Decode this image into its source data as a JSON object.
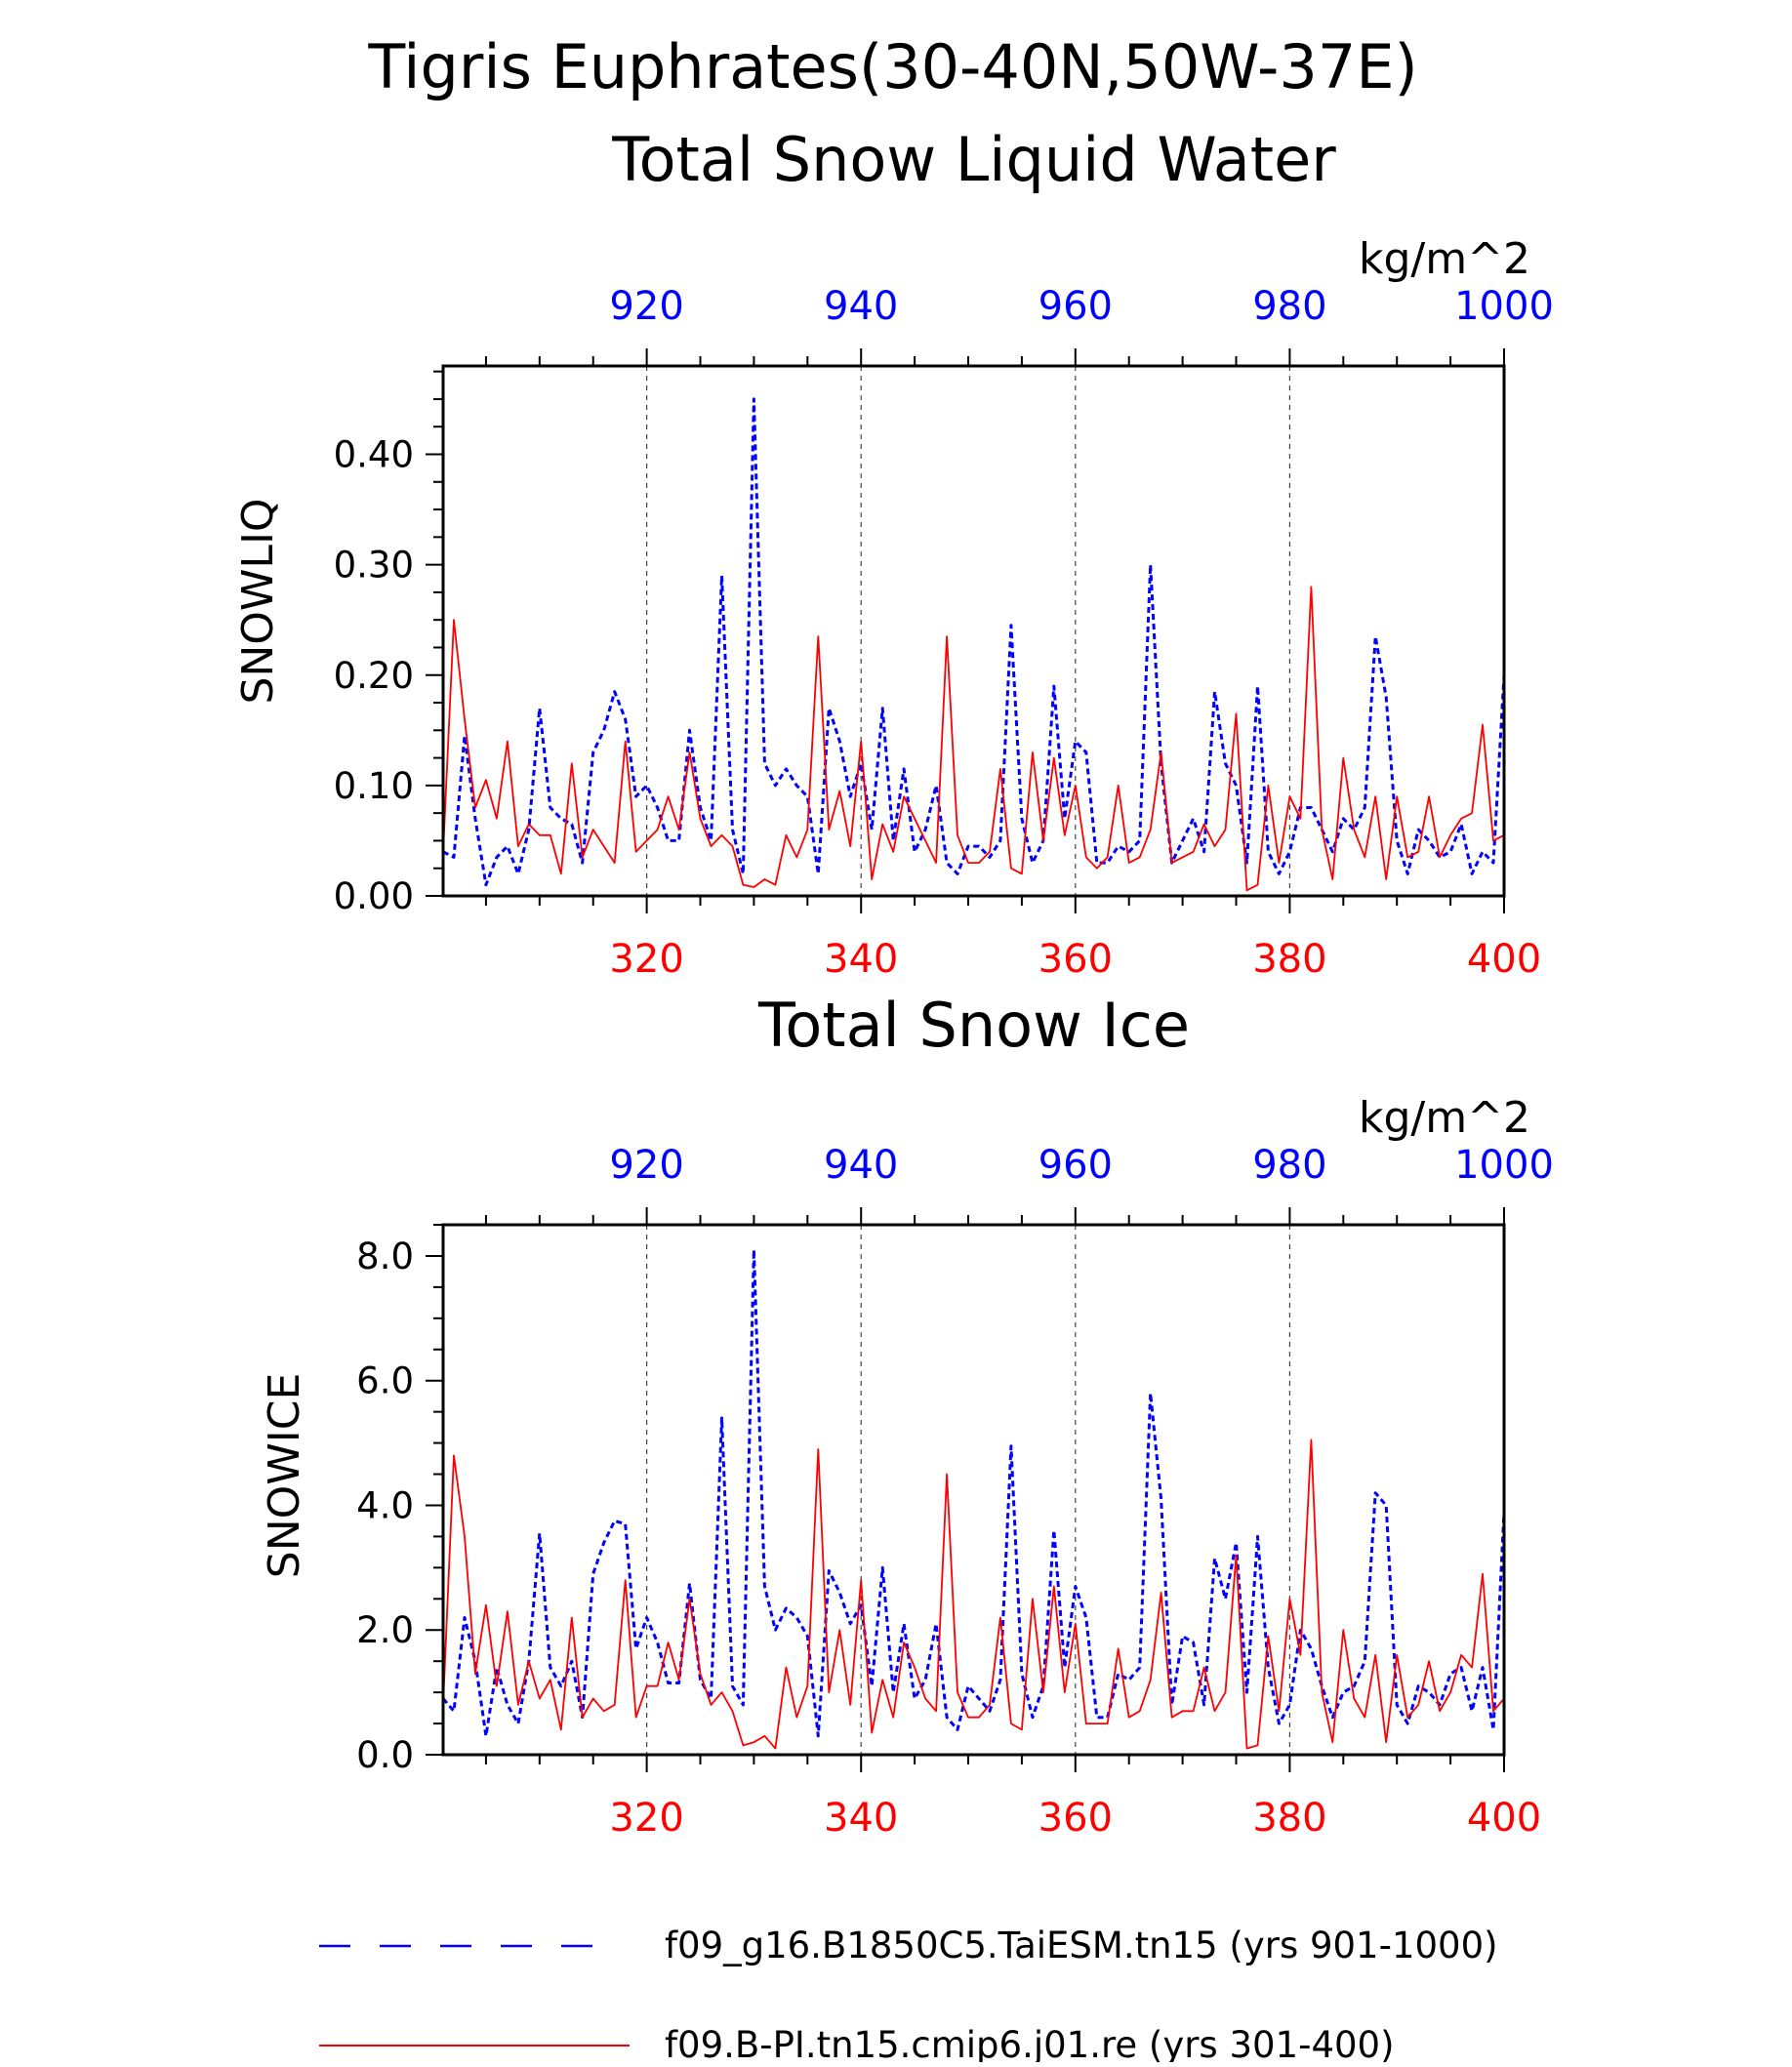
{
  "figure": {
    "title": "Tigris Euphrates(30-40N,50W-37E)"
  },
  "chart_data": [
    {
      "type": "line",
      "title": "Total Snow Liquid Water",
      "units": "kg/m^2",
      "ylabel": "SNOWLIQ",
      "ylim": [
        0,
        0.48
      ],
      "yticks": [
        "0.00",
        "0.10",
        "0.20",
        "0.30",
        "0.40"
      ],
      "xlim_bottom": [
        301,
        400
      ],
      "xticks_bottom": [
        "320",
        "340",
        "360",
        "380",
        "400"
      ],
      "xlim_top": [
        901,
        1000
      ],
      "xticks_top": [
        "920",
        "940",
        "960",
        "980",
        "1000"
      ],
      "grid": "vertical dashed at labelled x ticks",
      "series": [
        {
          "name": "f09_g16.B1850C5.TaiESM.tn15 (yrs 901-1000)",
          "axis": "top",
          "color": "#0000ff",
          "style": "dashed",
          "x_start": 901,
          "values": [
            0.04,
            0.035,
            0.145,
            0.07,
            0.01,
            0.035,
            0.045,
            0.02,
            0.06,
            0.17,
            0.08,
            0.07,
            0.065,
            0.03,
            0.13,
            0.15,
            0.185,
            0.16,
            0.09,
            0.1,
            0.08,
            0.05,
            0.05,
            0.15,
            0.08,
            0.05,
            0.29,
            0.06,
            0.02,
            0.45,
            0.12,
            0.1,
            0.115,
            0.1,
            0.09,
            0.02,
            0.17,
            0.14,
            0.09,
            0.12,
            0.06,
            0.17,
            0.05,
            0.115,
            0.04,
            0.06,
            0.1,
            0.03,
            0.02,
            0.045,
            0.045,
            0.035,
            0.05,
            0.245,
            0.07,
            0.03,
            0.05,
            0.19,
            0.07,
            0.14,
            0.13,
            0.03,
            0.03,
            0.045,
            0.04,
            0.05,
            0.3,
            0.12,
            0.03,
            0.05,
            0.07,
            0.04,
            0.185,
            0.12,
            0.1,
            0.03,
            0.19,
            0.04,
            0.02,
            0.04,
            0.08,
            0.08,
            0.06,
            0.04,
            0.07,
            0.06,
            0.08,
            0.235,
            0.18,
            0.05,
            0.02,
            0.06,
            0.05,
            0.035,
            0.04,
            0.065,
            0.02,
            0.04,
            0.03,
            0.2
          ]
        },
        {
          "name": "f09.B-PI.tn15.cmip6.j01.re (yrs 301-400)",
          "axis": "bottom",
          "color": "#ff0000",
          "style": "solid",
          "x_start": 301,
          "values": [
            0.04,
            0.25,
            0.16,
            0.08,
            0.105,
            0.07,
            0.14,
            0.045,
            0.065,
            0.055,
            0.055,
            0.02,
            0.12,
            0.035,
            0.06,
            0.045,
            0.03,
            0.14,
            0.04,
            0.05,
            0.06,
            0.09,
            0.06,
            0.13,
            0.07,
            0.045,
            0.055,
            0.045,
            0.01,
            0.008,
            0.015,
            0.01,
            0.055,
            0.035,
            0.06,
            0.235,
            0.06,
            0.095,
            0.045,
            0.14,
            0.015,
            0.065,
            0.04,
            0.09,
            0.07,
            0.05,
            0.03,
            0.235,
            0.055,
            0.03,
            0.03,
            0.04,
            0.115,
            0.025,
            0.02,
            0.13,
            0.05,
            0.125,
            0.055,
            0.1,
            0.035,
            0.025,
            0.035,
            0.1,
            0.03,
            0.035,
            0.06,
            0.13,
            0.03,
            0.035,
            0.04,
            0.065,
            0.045,
            0.06,
            0.165,
            0.005,
            0.01,
            0.1,
            0.03,
            0.09,
            0.07,
            0.28,
            0.06,
            0.015,
            0.125,
            0.06,
            0.035,
            0.09,
            0.015,
            0.09,
            0.035,
            0.04,
            0.09,
            0.035,
            0.055,
            0.07,
            0.075,
            0.155,
            0.05,
            0.055
          ]
        }
      ]
    },
    {
      "type": "line",
      "title": "Total Snow Ice",
      "units": "kg/m^2",
      "ylabel": "SNOWICE",
      "ylim": [
        0,
        8.5
      ],
      "yticks": [
        "0.0",
        "2.0",
        "4.0",
        "6.0",
        "8.0"
      ],
      "xlim_bottom": [
        301,
        400
      ],
      "xticks_bottom": [
        "320",
        "340",
        "360",
        "380",
        "400"
      ],
      "xlim_top": [
        901,
        1000
      ],
      "xticks_top": [
        "920",
        "940",
        "960",
        "980",
        "1000"
      ],
      "grid": "vertical dashed at labelled x ticks",
      "series": [
        {
          "name": "f09_g16.B1850C5.TaiESM.tn15 (yrs 901-1000)",
          "axis": "top",
          "color": "#0000ff",
          "style": "dashed",
          "x_start": 901,
          "values": [
            0.9,
            0.7,
            2.2,
            1.5,
            0.3,
            1.4,
            0.8,
            0.5,
            1.5,
            3.55,
            1.4,
            1.1,
            1.5,
            0.6,
            2.9,
            3.4,
            3.75,
            3.7,
            1.7,
            2.2,
            1.8,
            1.15,
            1.15,
            2.75,
            1.2,
            0.9,
            5.4,
            1.1,
            0.8,
            8.1,
            2.7,
            2.0,
            2.35,
            2.2,
            1.9,
            0.3,
            2.95,
            2.6,
            2.1,
            2.4,
            1.1,
            3.0,
            1.0,
            2.1,
            0.9,
            1.2,
            2.1,
            0.6,
            0.4,
            1.1,
            0.9,
            0.7,
            1.2,
            4.95,
            1.3,
            0.6,
            1.1,
            3.6,
            1.4,
            2.7,
            2.2,
            0.6,
            0.6,
            1.3,
            1.2,
            1.4,
            5.8,
            4.1,
            0.8,
            1.9,
            1.8,
            0.8,
            3.15,
            2.5,
            3.4,
            1.0,
            3.5,
            1.4,
            0.5,
            0.8,
            2.0,
            1.7,
            1.1,
            0.6,
            1.0,
            1.1,
            1.5,
            4.2,
            4.0,
            0.8,
            0.5,
            1.1,
            1.0,
            0.8,
            1.3,
            1.4,
            0.7,
            1.4,
            0.4,
            3.9
          ]
        },
        {
          "name": "f09.B-PI.tn15.cmip6.j01.re (yrs 301-400)",
          "axis": "bottom",
          "color": "#ff0000",
          "style": "solid",
          "x_start": 301,
          "values": [
            0.8,
            4.8,
            3.5,
            1.3,
            2.4,
            1.1,
            2.3,
            0.8,
            1.5,
            0.9,
            1.2,
            0.4,
            2.2,
            0.6,
            0.9,
            0.7,
            0.8,
            2.8,
            0.6,
            1.1,
            1.1,
            1.8,
            1.2,
            2.5,
            1.3,
            0.8,
            1.0,
            0.7,
            0.15,
            0.2,
            0.3,
            0.1,
            1.4,
            0.6,
            1.1,
            4.9,
            1.0,
            2.0,
            0.8,
            2.8,
            0.35,
            1.2,
            0.6,
            1.8,
            1.4,
            0.9,
            0.7,
            4.5,
            1.0,
            0.6,
            0.6,
            0.8,
            2.2,
            0.5,
            0.4,
            2.5,
            1.0,
            2.7,
            1.0,
            2.1,
            0.5,
            0.5,
            0.5,
            1.7,
            0.6,
            0.7,
            1.2,
            2.6,
            0.6,
            0.7,
            0.7,
            1.4,
            0.7,
            1.0,
            3.2,
            0.1,
            0.15,
            1.9,
            0.7,
            2.5,
            1.6,
            5.05,
            1.0,
            0.2,
            2.0,
            0.9,
            0.6,
            1.6,
            0.2,
            1.6,
            0.6,
            0.8,
            1.5,
            0.7,
            1.0,
            1.6,
            1.4,
            2.9,
            0.7,
            0.9
          ]
        }
      ]
    }
  ],
  "legend": {
    "items": [
      {
        "label": "f09_g16.B1850C5.TaiESM.tn15 (yrs 901-1000)",
        "color": "#0000ff",
        "style": "dashed"
      },
      {
        "label": "f09.B-PI.tn15.cmip6.j01.re (yrs 301-400)",
        "color": "#ff0000",
        "style": "solid"
      }
    ]
  }
}
